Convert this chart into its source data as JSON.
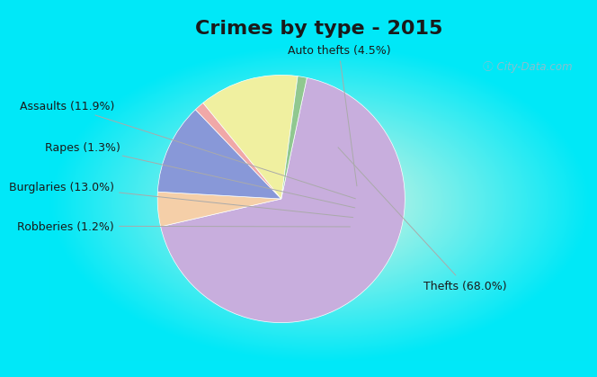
{
  "title": "Crimes by type - 2015",
  "labels": [
    "Thefts",
    "Auto thefts",
    "Assaults",
    "Rapes",
    "Burglaries",
    "Robberies"
  ],
  "values": [
    68.0,
    4.5,
    11.9,
    1.3,
    13.0,
    1.2
  ],
  "colors": [
    "#c8aedd",
    "#f5cfa8",
    "#8898d8",
    "#f0a8a8",
    "#f0f0a0",
    "#90c890"
  ],
  "label_texts": [
    "Thefts (68.0%)",
    "Auto thefts (4.5%)",
    "Assaults (11.9%)",
    "Rapes (1.3%)",
    "Burglaries (13.0%)",
    "Robberies (1.2%)"
  ],
  "background_cyan": "#00e8f8",
  "title_fontsize": 16,
  "label_fontsize": 9,
  "startangle": 78,
  "watermark": "City-Data.com"
}
